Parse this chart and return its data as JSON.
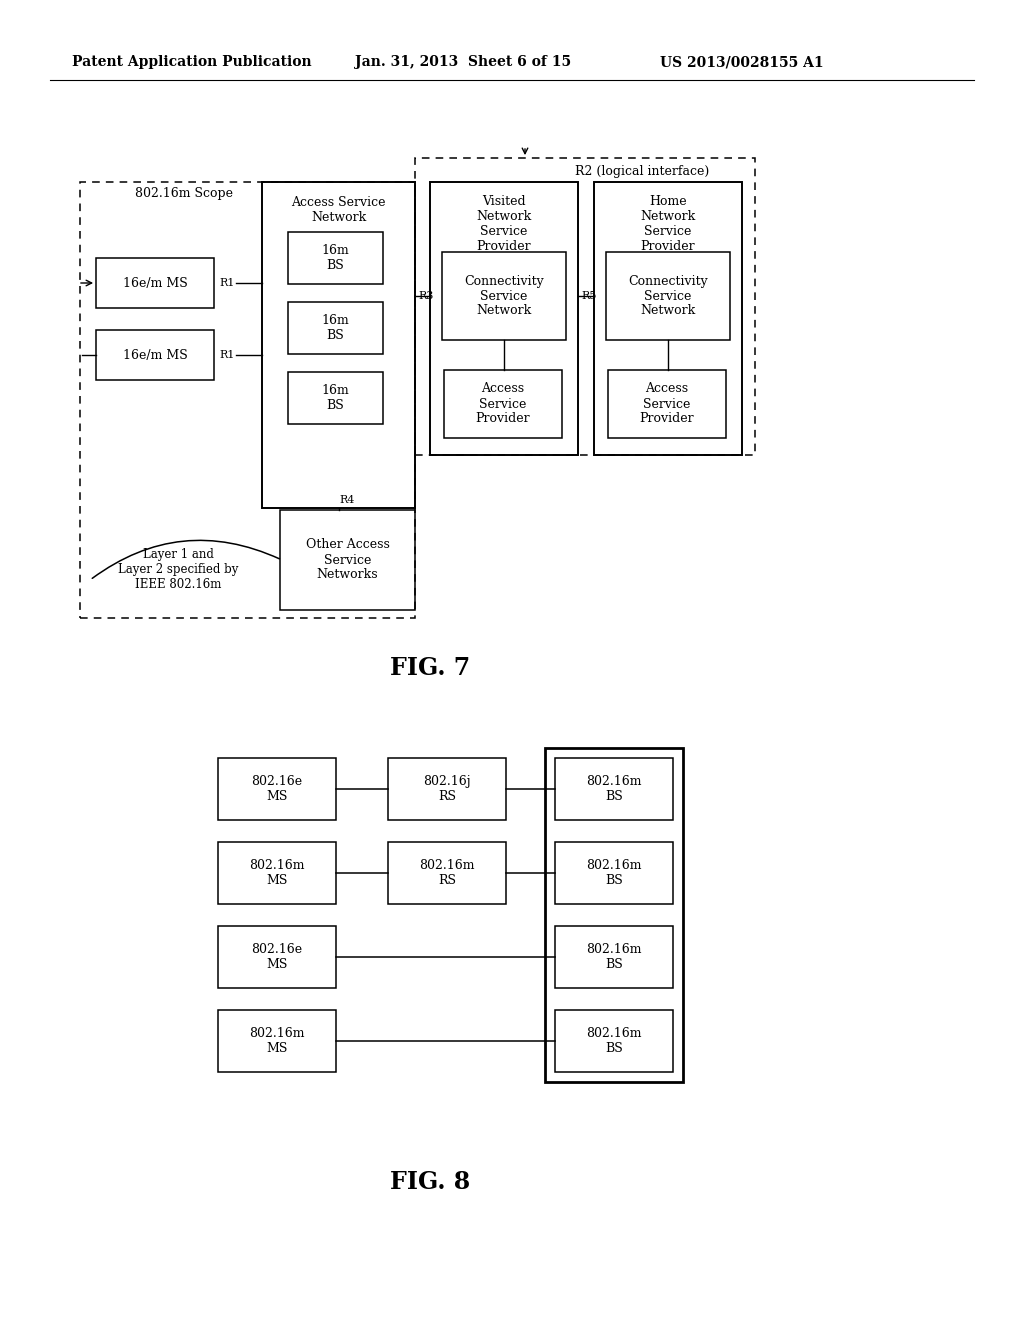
{
  "bg_color": "#ffffff",
  "header_left": "Patent Application Publication",
  "header_mid": "Jan. 31, 2013  Sheet 6 of 15",
  "header_right": "US 2013/0028155 A1",
  "fig7_label": "FIG. 7",
  "fig8_label": "FIG. 8",
  "fig7": {
    "scope_label": "802.16m Scope",
    "r2_label": "R2 (logical interface)",
    "r1_label": "R1",
    "r3_label": "R3",
    "r4_label": "R4",
    "r5_label": "R5",
    "ms1_label": "16e/m MS",
    "ms2_label": "16e/m MS",
    "asn_label": "Access Service\nNetwork",
    "bs1_label": "16m\nBS",
    "bs2_label": "16m\nBS",
    "bs3_label": "16m\nBS",
    "vnsp_label": "Visited\nNetwork\nService\nProvider",
    "hnsp_label": "Home\nNetwork\nService\nProvider",
    "csn1_label": "Connectivity\nService\nNetwork",
    "csn2_label": "Connectivity\nService\nNetwork",
    "asp1_label": "Access\nService\nProvider",
    "asp2_label": "Access\nService\nProvider",
    "other_label": "Other Access\nService\nNetworks",
    "layer_label": "Layer 1 and\nLayer 2 specified by\nIEEE 802.16m"
  },
  "fig8": {
    "rows": [
      {
        "ms": "802.16e\nMS",
        "rs": "802.16j\nRS",
        "bs": "802.16m\nBS"
      },
      {
        "ms": "802.16m\nMS",
        "rs": "802.16m\nRS",
        "bs": "802.16m\nBS"
      },
      {
        "ms": "802.16e\nMS",
        "rs": null,
        "bs": "802.16m\nBS"
      },
      {
        "ms": "802.16m\nMS",
        "rs": null,
        "bs": "802.16m\nBS"
      }
    ]
  }
}
